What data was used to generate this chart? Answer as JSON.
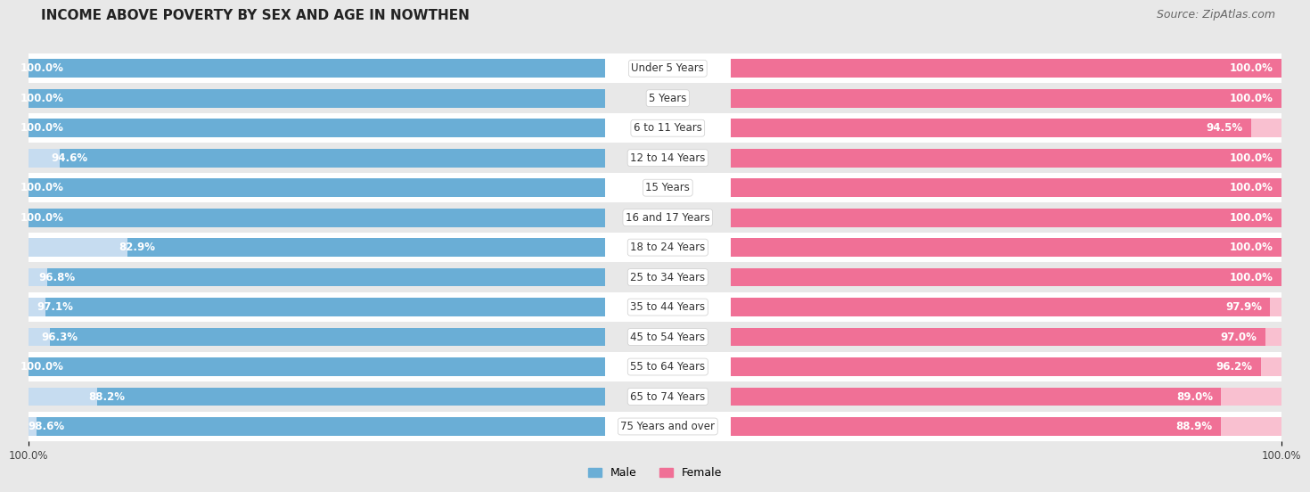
{
  "title": "INCOME ABOVE POVERTY BY SEX AND AGE IN NOWTHEN",
  "source": "Source: ZipAtlas.com",
  "categories": [
    "Under 5 Years",
    "5 Years",
    "6 to 11 Years",
    "12 to 14 Years",
    "15 Years",
    "16 and 17 Years",
    "18 to 24 Years",
    "25 to 34 Years",
    "35 to 44 Years",
    "45 to 54 Years",
    "55 to 64 Years",
    "65 to 74 Years",
    "75 Years and over"
  ],
  "male_values": [
    100.0,
    100.0,
    100.0,
    94.6,
    100.0,
    100.0,
    82.9,
    96.8,
    97.1,
    96.3,
    100.0,
    88.2,
    98.6
  ],
  "female_values": [
    100.0,
    100.0,
    94.5,
    100.0,
    100.0,
    100.0,
    100.0,
    100.0,
    97.9,
    97.0,
    96.2,
    89.0,
    88.9
  ],
  "male_color": "#6aaed6",
  "female_color": "#f07096",
  "male_light_color": "#c6dcf0",
  "female_light_color": "#f9c0d0",
  "background_color": "#e8e8e8",
  "row_alt_color": "#ffffff",
  "title_fontsize": 11,
  "source_fontsize": 9,
  "label_fontsize": 8.5,
  "cat_fontsize": 8.5,
  "bar_height": 0.62,
  "xlim": [
    0,
    100
  ],
  "bottom_labels": [
    "100.0%",
    "100.0%"
  ],
  "legend_labels": [
    "Male",
    "Female"
  ]
}
